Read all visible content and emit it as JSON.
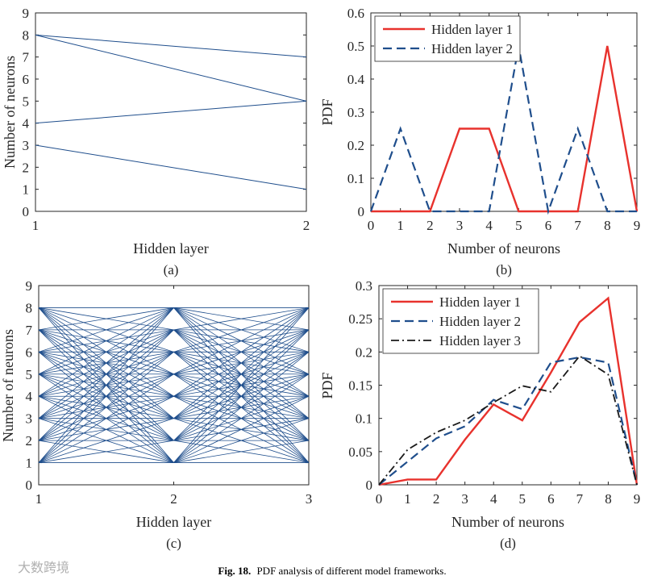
{
  "caption": {
    "label": "Fig. 18.",
    "text": "PDF analysis of different model frameworks."
  },
  "watermark": "大数跨境",
  "colors": {
    "blue": "#1f4e8c",
    "red": "#e8322d",
    "dash_blue": "#1f4e8c",
    "dashdot": "#1a1a1a",
    "axis": "#262626"
  },
  "chart_data": [
    {
      "id": "a",
      "panel_label": "(a)",
      "type": "line",
      "xlabel": "Hidden layer",
      "ylabel": "Number of neurons",
      "xlim": [
        1,
        2
      ],
      "ylim": [
        0,
        9
      ],
      "xticks": [
        1,
        2
      ],
      "yticks": [
        0,
        1,
        2,
        3,
        4,
        5,
        6,
        7,
        8,
        9
      ],
      "grid": false,
      "connections": [
        [
          8,
          7
        ],
        [
          8,
          5
        ],
        [
          4,
          5
        ],
        [
          3,
          1
        ]
      ]
    },
    {
      "id": "b",
      "panel_label": "(b)",
      "type": "line",
      "xlabel": "Number of neurons",
      "ylabel": "PDF",
      "xlim": [
        0,
        9
      ],
      "ylim": [
        0,
        0.6
      ],
      "xticks": [
        0,
        1,
        2,
        3,
        4,
        5,
        6,
        7,
        8,
        9
      ],
      "yticks": [
        "0",
        "0.1",
        "0.2",
        "0.3",
        "0.4",
        "0.5",
        "0.6"
      ],
      "legend_position": "top-left",
      "x": [
        0,
        1,
        2,
        3,
        4,
        5,
        6,
        7,
        8,
        9
      ],
      "series": [
        {
          "name": "Hidden layer 1",
          "style": "solid",
          "values": [
            0,
            0,
            0,
            0.25,
            0.25,
            0,
            0,
            0,
            0.5,
            0
          ]
        },
        {
          "name": "Hidden layer 2",
          "style": "dashed",
          "values": [
            0,
            0.25,
            0,
            0,
            0,
            0.5,
            0,
            0.25,
            0,
            0
          ]
        }
      ]
    },
    {
      "id": "c",
      "panel_label": "(c)",
      "type": "line",
      "xlabel": "Hidden layer",
      "ylabel": "Number of neurons",
      "xlim": [
        1,
        3
      ],
      "ylim": [
        0,
        9
      ],
      "xticks": [
        1,
        2,
        3
      ],
      "yticks": [
        0,
        1,
        2,
        3,
        4,
        5,
        6,
        7,
        8,
        9
      ],
      "grid": false,
      "layer1": [
        1,
        2,
        3,
        4,
        5,
        6,
        7,
        8
      ],
      "layer2": [
        1,
        2,
        3,
        4,
        5,
        6,
        7,
        8
      ],
      "layer3": [
        1,
        2,
        3,
        4,
        5,
        6,
        7,
        8
      ]
    },
    {
      "id": "d",
      "panel_label": "(d)",
      "type": "line",
      "xlabel": "Number of neurons",
      "ylabel": "PDF",
      "xlim": [
        0,
        9
      ],
      "ylim": [
        0,
        0.3
      ],
      "xticks": [
        0,
        1,
        2,
        3,
        4,
        5,
        6,
        7,
        8,
        9
      ],
      "yticks": [
        "0",
        "0.05",
        "0.1",
        "0.15",
        "0.2",
        "0.25",
        "0.3"
      ],
      "legend_position": "top-left",
      "x": [
        0,
        1,
        2,
        3,
        4,
        5,
        6,
        7,
        8,
        9
      ],
      "series": [
        {
          "name": "Hidden layer 1",
          "style": "solid",
          "values": [
            0,
            0.008,
            0.008,
            0.068,
            0.121,
            0.097,
            0.169,
            0.245,
            0.281,
            0
          ]
        },
        {
          "name": "Hidden layer 2",
          "style": "dashed",
          "values": [
            0,
            0.035,
            0.07,
            0.088,
            0.128,
            0.114,
            0.184,
            0.192,
            0.184,
            0
          ]
        },
        {
          "name": "Hidden layer 3",
          "style": "dashdot",
          "values": [
            0,
            0.053,
            0.079,
            0.097,
            0.124,
            0.149,
            0.14,
            0.194,
            0.166,
            0
          ]
        }
      ]
    }
  ]
}
